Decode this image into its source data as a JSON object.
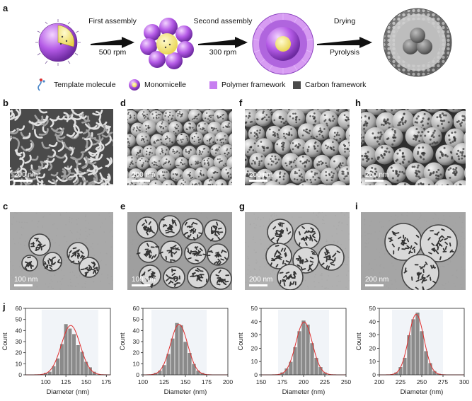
{
  "panels": {
    "a": "a",
    "b": "b",
    "c": "c",
    "d": "d",
    "e": "e",
    "f": "f",
    "g": "g",
    "h": "h",
    "i": "i",
    "j": "j"
  },
  "schematic": {
    "step1_title": "First assembly",
    "step1_speed": "500 rpm",
    "step2_title": "Second assembly",
    "step2_speed": "300 rpm",
    "step3_title": "Drying",
    "step3_sub": "Pyrolysis"
  },
  "legend": {
    "template": "Template molecule",
    "monomicelle": "Monomicelle",
    "polymer": "Polymer framework",
    "carbon": "Carbon framework"
  },
  "colors": {
    "polymer": "#c77ff0",
    "carbon": "#4a4a4a",
    "bar": "#8a8a8a",
    "fit": "#e03030"
  },
  "sem": [
    {
      "scale": "200 nm"
    },
    {
      "scale": "200 nm"
    },
    {
      "scale": "200 nm"
    },
    {
      "scale": "200 nm"
    }
  ],
  "tem": [
    {
      "scale": "100 nm"
    },
    {
      "scale": "100 nm"
    },
    {
      "scale": "200 nm"
    },
    {
      "scale": "200 nm"
    }
  ],
  "chart_data": [
    {
      "type": "bar",
      "xlabel": "Diameter (nm)",
      "ylabel": "Count",
      "xlim": [
        75,
        180
      ],
      "ylim": [
        0,
        60
      ],
      "xticks": [
        100,
        125,
        150,
        175
      ],
      "yticks": [
        0,
        10,
        20,
        30,
        40,
        50,
        60
      ],
      "bin_width": 5,
      "x": [
        100,
        105,
        110,
        115,
        120,
        125,
        130,
        135,
        140,
        145,
        150,
        155,
        160
      ],
      "values": [
        2,
        3,
        8,
        15,
        28,
        46,
        42,
        37,
        27,
        21,
        12,
        7,
        3
      ]
    },
    {
      "type": "bar",
      "xlabel": "Diameter (nm)",
      "ylabel": "Count",
      "xlim": [
        100,
        200
      ],
      "ylim": [
        0,
        60
      ],
      "xticks": [
        100,
        125,
        150,
        175,
        200
      ],
      "yticks": [
        0,
        10,
        20,
        30,
        40,
        50,
        60
      ],
      "bin_width": 5,
      "x": [
        115,
        120,
        125,
        130,
        135,
        140,
        145,
        150,
        155,
        160,
        165,
        170
      ],
      "values": [
        2,
        4,
        9,
        19,
        33,
        47,
        45,
        30,
        20,
        10,
        4,
        2
      ]
    },
    {
      "type": "bar",
      "xlabel": "Diameter (nm)",
      "ylabel": "Count",
      "xlim": [
        150,
        250
      ],
      "ylim": [
        0,
        50
      ],
      "xticks": [
        150,
        175,
        200,
        225,
        250
      ],
      "yticks": [
        0,
        10,
        20,
        30,
        40,
        50
      ],
      "bin_width": 5,
      "x": [
        175,
        180,
        185,
        190,
        195,
        200,
        205,
        210,
        215,
        220,
        225
      ],
      "values": [
        2,
        5,
        10,
        21,
        33,
        41,
        38,
        24,
        13,
        6,
        2
      ]
    },
    {
      "type": "bar",
      "xlabel": "Diameter (nm)",
      "ylabel": "Count",
      "xlim": [
        200,
        300
      ],
      "ylim": [
        0,
        50
      ],
      "xticks": [
        200,
        225,
        250,
        275,
        300
      ],
      "yticks": [
        0,
        10,
        20,
        30,
        40,
        50
      ],
      "bin_width": 5,
      "x": [
        220,
        225,
        230,
        235,
        240,
        245,
        250,
        255,
        260,
        265,
        270
      ],
      "values": [
        2,
        6,
        13,
        30,
        42,
        47,
        33,
        18,
        9,
        3,
        1
      ]
    }
  ]
}
